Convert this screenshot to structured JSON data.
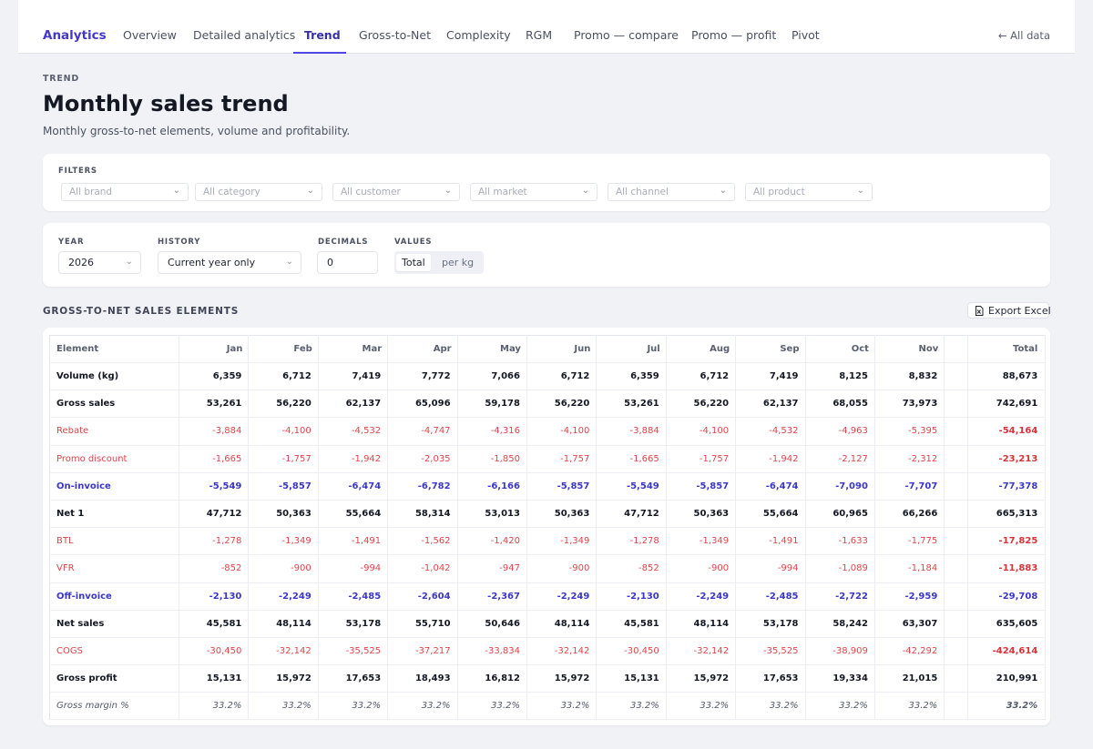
{
  "nav": {
    "brand": "Analytics",
    "items": [
      {
        "label": "Overview"
      },
      {
        "label": "Detailed analytics"
      },
      {
        "label": "Trend"
      },
      {
        "label": "Gross-to-Net"
      },
      {
        "label": "Complexity"
      },
      {
        "label": "RGM"
      },
      {
        "label": "Promo — compare"
      },
      {
        "label": "Promo — profit"
      },
      {
        "label": "Pivot"
      }
    ],
    "active": "Trend",
    "all_data": "All data",
    "all_data_icon": "arrow-left-icon"
  },
  "header": {
    "eyebrow": "TREND",
    "title": "Monthly sales trend",
    "subtitle": "Monthly gross-to-net elements, volume and profitability."
  },
  "filters": {
    "label": "FILTERS",
    "selects": [
      "All brand",
      "All category",
      "All customer",
      "All market",
      "All channel",
      "All product"
    ]
  },
  "options": {
    "year_label": "YEAR",
    "year_value": "2026",
    "history_label": "HISTORY",
    "history_value": "Current year only",
    "decimals_label": "DECIMALS",
    "decimals_value": "0",
    "values_label": "VALUES",
    "values_options": [
      "Total",
      "per kg"
    ],
    "values_selected": "Total"
  },
  "section": {
    "title": "GROSS-TO-NET SALES ELEMENTS",
    "export_label": "Export Excel",
    "export_icon": "file-excel-icon"
  },
  "table": {
    "headers": [
      "Element",
      "Jan",
      "Feb",
      "Mar",
      "Apr",
      "May",
      "Jun",
      "Jul",
      "Aug",
      "Sep",
      "Oct",
      "Nov",
      "",
      "Total"
    ],
    "rows": [
      {
        "style": "bold",
        "cells": [
          "Volume (kg)",
          "6,359",
          "6,712",
          "7,419",
          "7,772",
          "7,066",
          "6,712",
          "6,359",
          "6,712",
          "7,419",
          "8,125",
          "8,832",
          "",
          "88,673"
        ]
      },
      {
        "style": "bold",
        "cells": [
          "Gross sales",
          "53,261",
          "56,220",
          "62,137",
          "65,096",
          "59,178",
          "56,220",
          "53,261",
          "56,220",
          "62,137",
          "68,055",
          "73,973",
          "",
          "742,691"
        ]
      },
      {
        "style": "red",
        "cells": [
          "Rebate",
          "-3,884",
          "-4,100",
          "-4,532",
          "-4,747",
          "-4,316",
          "-4,100",
          "-3,884",
          "-4,100",
          "-4,532",
          "-4,963",
          "-5,395",
          "",
          "-54,164"
        ]
      },
      {
        "style": "red",
        "cells": [
          "Promo discount",
          "-1,665",
          "-1,757",
          "-1,942",
          "-2,035",
          "-1,850",
          "-1,757",
          "-1,665",
          "-1,757",
          "-1,942",
          "-2,127",
          "-2,312",
          "",
          "-23,213"
        ]
      },
      {
        "style": "blue",
        "cells": [
          "On-invoice",
          "-5,549",
          "-5,857",
          "-6,474",
          "-6,782",
          "-6,166",
          "-5,857",
          "-5,549",
          "-5,857",
          "-6,474",
          "-7,090",
          "-7,707",
          "",
          "-77,378"
        ]
      },
      {
        "style": "bold",
        "cells": [
          "Net 1",
          "47,712",
          "50,363",
          "55,664",
          "58,314",
          "53,013",
          "50,363",
          "47,712",
          "50,363",
          "55,664",
          "60,965",
          "66,266",
          "",
          "665,313"
        ]
      },
      {
        "style": "red",
        "cells": [
          "BTL",
          "-1,278",
          "-1,349",
          "-1,491",
          "-1,562",
          "-1,420",
          "-1,349",
          "-1,278",
          "-1,349",
          "-1,491",
          "-1,633",
          "-1,775",
          "",
          "-17,825"
        ]
      },
      {
        "style": "red",
        "cells": [
          "VFR",
          "-852",
          "-900",
          "-994",
          "-1,042",
          "-947",
          "-900",
          "-852",
          "-900",
          "-994",
          "-1,089",
          "-1,184",
          "",
          "-11,883"
        ]
      },
      {
        "style": "blue",
        "cells": [
          "Off-invoice",
          "-2,130",
          "-2,249",
          "-2,485",
          "-2,604",
          "-2,367",
          "-2,249",
          "-2,130",
          "-2,249",
          "-2,485",
          "-2,722",
          "-2,959",
          "",
          "-29,708"
        ]
      },
      {
        "style": "bold",
        "cells": [
          "Net sales",
          "45,581",
          "48,114",
          "53,178",
          "55,710",
          "50,646",
          "48,114",
          "45,581",
          "48,114",
          "53,178",
          "58,242",
          "63,307",
          "",
          "635,605"
        ]
      },
      {
        "style": "red",
        "cells": [
          "COGS",
          "-30,450",
          "-32,142",
          "-35,525",
          "-37,217",
          "-33,834",
          "-32,142",
          "-30,450",
          "-32,142",
          "-35,525",
          "-38,909",
          "-42,292",
          "",
          "-424,614"
        ]
      },
      {
        "style": "bold",
        "cells": [
          "Gross profit",
          "15,131",
          "15,972",
          "17,653",
          "18,493",
          "16,812",
          "15,972",
          "15,131",
          "15,972",
          "17,653",
          "19,334",
          "21,015",
          "",
          "210,991"
        ]
      },
      {
        "style": "ital",
        "cells": [
          "Gross margin %",
          "33.2%",
          "33.2%",
          "33.2%",
          "33.2%",
          "33.2%",
          "33.2%",
          "33.2%",
          "33.2%",
          "33.2%",
          "33.2%",
          "33.2%",
          "",
          "33.2%"
        ]
      }
    ]
  },
  "colors": {
    "accent": "#4f46e5",
    "negative": "#e0454b",
    "subtotal": "#3b37c8"
  }
}
